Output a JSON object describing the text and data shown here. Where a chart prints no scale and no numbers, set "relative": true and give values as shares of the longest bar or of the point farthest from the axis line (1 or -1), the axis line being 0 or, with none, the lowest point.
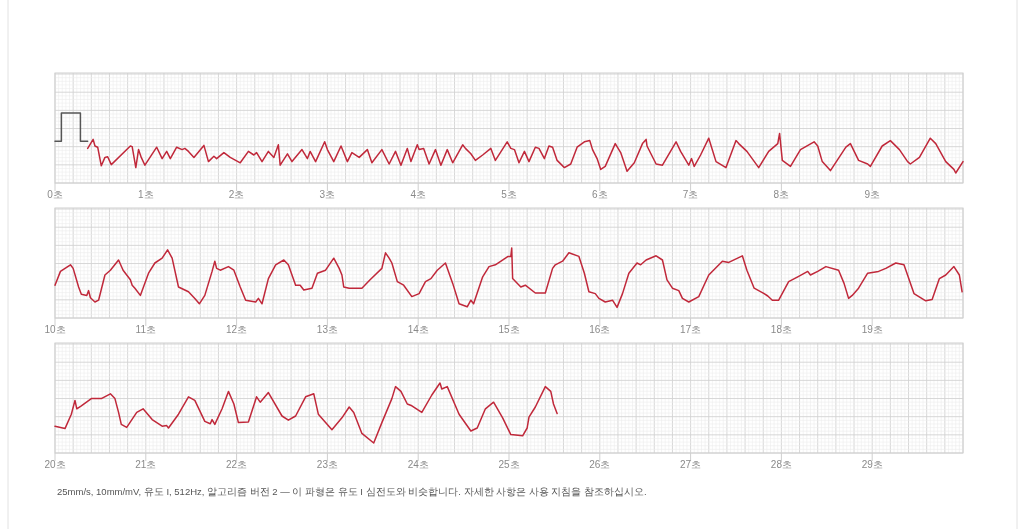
{
  "chart_data": [
    {
      "type": "line",
      "relative": true,
      "grid": true,
      "xlim": [
        0,
        10
      ],
      "xticks": [
        {
          "value": 0,
          "label": "0초"
        },
        {
          "value": 1,
          "label": "1초"
        },
        {
          "value": 2,
          "label": "2초"
        },
        {
          "value": 3,
          "label": "3초"
        },
        {
          "value": 4,
          "label": "4초"
        },
        {
          "value": 5,
          "label": "5초"
        },
        {
          "value": 6,
          "label": "6초"
        },
        {
          "value": 7,
          "label": "7초"
        },
        {
          "value": 8,
          "label": "8초"
        },
        {
          "value": 9,
          "label": "9초"
        }
      ],
      "series": [
        {
          "color": "#555555",
          "x": [
            0,
            0.07,
            0.07,
            0.28,
            0.28,
            0.36
          ],
          "values": [
            0.53,
            0.53,
            1.0,
            1.0,
            0.53,
            0.53
          ]
        },
        {
          "color": "#c0283a",
          "x": [
            0.36,
            0.42,
            0.44,
            0.47,
            0.51,
            0.55,
            0.58,
            0.62,
            0.83,
            0.85,
            0.89,
            0.92,
            0.95,
            0.99,
            1.12,
            1.18,
            1.23,
            1.27,
            1.34,
            1.4,
            1.43,
            1.47,
            1.53,
            1.64,
            1.69,
            1.75,
            1.78,
            1.86,
            1.93,
            2.04,
            2.13,
            2.19,
            2.22,
            2.28,
            2.35,
            2.41,
            2.46,
            2.48,
            2.56,
            2.61,
            2.72,
            2.78,
            2.81,
            2.87,
            2.97,
            3.0,
            3.07,
            3.15,
            3.22,
            3.27,
            3.35,
            3.44,
            3.49,
            3.6,
            3.68,
            3.75,
            3.81,
            3.88,
            3.92,
            3.99,
            4.01,
            4.06,
            4.12,
            4.19,
            4.25,
            4.32,
            4.38,
            4.49,
            4.52,
            4.58,
            4.63,
            4.71,
            4.8,
            4.85,
            4.98,
            5.02,
            5.06,
            5.11,
            5.17,
            5.22,
            5.29,
            5.33,
            5.39,
            5.44,
            5.48,
            5.53,
            5.61,
            5.68,
            5.75,
            5.83,
            5.89,
            5.92,
            5.97,
            6.01,
            6.06,
            6.17,
            6.23,
            6.3,
            6.38,
            6.47,
            6.51,
            6.52,
            6.62,
            6.69,
            6.84,
            6.89,
            6.98,
            7.01,
            7.04,
            7.11,
            7.2,
            7.28,
            7.39,
            7.5,
            7.53,
            7.62,
            7.75,
            7.86,
            7.96,
            7.98,
            8.01,
            8.1,
            8.21,
            8.36,
            8.4,
            8.45,
            8.54,
            8.71,
            8.76,
            8.85,
            8.95,
            8.98,
            9.11,
            9.2,
            9.3,
            9.39,
            9.42,
            9.52,
            9.64,
            9.7,
            9.81,
            9.9,
            9.92,
            10.0
          ],
          "values": [
            0.41,
            0.56,
            0.45,
            0.43,
            0.12,
            0.26,
            0.27,
            0.14,
            0.45,
            0.44,
            0.09,
            0.39,
            0.26,
            0.13,
            0.43,
            0.24,
            0.36,
            0.24,
            0.43,
            0.39,
            0.41,
            0.36,
            0.26,
            0.46,
            0.19,
            0.28,
            0.24,
            0.34,
            0.26,
            0.17,
            0.36,
            0.3,
            0.34,
            0.19,
            0.36,
            0.26,
            0.47,
            0.13,
            0.32,
            0.19,
            0.39,
            0.24,
            0.36,
            0.19,
            0.52,
            0.39,
            0.19,
            0.45,
            0.19,
            0.34,
            0.26,
            0.39,
            0.17,
            0.39,
            0.15,
            0.36,
            0.13,
            0.41,
            0.19,
            0.47,
            0.39,
            0.41,
            0.15,
            0.39,
            0.13,
            0.39,
            0.17,
            0.47,
            0.41,
            0.32,
            0.21,
            0.3,
            0.41,
            0.21,
            0.52,
            0.41,
            0.39,
            0.17,
            0.36,
            0.19,
            0.43,
            0.41,
            0.24,
            0.45,
            0.43,
            0.21,
            0.09,
            0.15,
            0.43,
            0.52,
            0.54,
            0.39,
            0.24,
            0.06,
            0.11,
            0.49,
            0.34,
            0.03,
            0.17,
            0.49,
            0.56,
            0.45,
            0.15,
            0.13,
            0.52,
            0.36,
            0.13,
            0.24,
            0.11,
            0.3,
            0.58,
            0.19,
            0.09,
            0.54,
            0.49,
            0.36,
            0.09,
            0.36,
            0.49,
            0.66,
            0.21,
            0.11,
            0.39,
            0.52,
            0.45,
            0.19,
            0.04,
            0.43,
            0.49,
            0.21,
            0.15,
            0.11,
            0.45,
            0.54,
            0.39,
            0.19,
            0.15,
            0.26,
            0.58,
            0.49,
            0.19,
            0.06,
            0.0,
            0.19
          ]
        }
      ]
    },
    {
      "type": "line",
      "relative": true,
      "grid": true,
      "xlim": [
        10,
        20
      ],
      "xticks": [
        {
          "value": 10,
          "label": "10초"
        },
        {
          "value": 11,
          "label": "11초"
        },
        {
          "value": 12,
          "label": "12초"
        },
        {
          "value": 13,
          "label": "13초"
        },
        {
          "value": 14,
          "label": "14초"
        },
        {
          "value": 15,
          "label": "15초"
        },
        {
          "value": 16,
          "label": "16초"
        },
        {
          "value": 17,
          "label": "17초"
        },
        {
          "value": 18,
          "label": "18초"
        },
        {
          "value": 19,
          "label": "19초"
        }
      ],
      "series": [
        {
          "color": "#c0283a",
          "x": [
            10.0,
            10.06,
            10.17,
            10.2,
            10.26,
            10.29,
            10.35,
            10.37,
            10.39,
            10.44,
            10.48,
            10.55,
            10.61,
            10.7,
            10.75,
            10.83,
            10.85,
            10.88,
            10.94,
            11.03,
            11.1,
            11.18,
            11.24,
            11.29,
            11.36,
            11.47,
            11.54,
            11.59,
            11.65,
            11.73,
            11.76,
            11.78,
            11.82,
            11.91,
            11.97,
            12.04,
            12.1,
            12.21,
            12.24,
            12.28,
            12.35,
            12.43,
            12.52,
            12.57,
            12.65,
            12.7,
            12.74,
            12.83,
            12.89,
            12.98,
            13.07,
            13.13,
            13.16,
            13.18,
            13.24,
            13.38,
            13.47,
            13.6,
            13.64,
            13.68,
            13.71,
            13.77,
            13.84,
            13.93,
            14.01,
            14.08,
            14.14,
            14.21,
            14.3,
            14.38,
            14.45,
            14.54,
            14.58,
            14.61,
            14.71,
            14.78,
            14.85,
            14.99,
            15.02,
            15.03,
            15.04,
            15.13,
            15.18,
            15.29,
            15.4,
            15.48,
            15.51,
            15.59,
            15.66,
            15.77,
            15.83,
            15.88,
            15.95,
            15.99,
            16.06,
            16.14,
            16.19,
            16.25,
            16.32,
            16.41,
            16.45,
            16.51,
            16.62,
            16.69,
            16.74,
            16.8,
            16.87,
            16.91,
            16.98,
            17.09,
            17.2,
            17.35,
            17.42,
            17.57,
            17.62,
            17.7,
            17.81,
            17.85,
            17.9,
            17.97,
            18.08,
            18.18,
            18.29,
            18.32,
            18.4,
            18.49,
            18.63,
            18.69,
            18.74,
            18.78,
            18.85,
            18.95,
            19.07,
            19.15,
            19.26,
            19.35,
            19.46,
            19.59,
            19.66,
            19.74,
            19.81,
            19.9,
            19.96,
            19.99
          ],
          "values": [
            0.38,
            0.61,
            0.72,
            0.66,
            0.35,
            0.23,
            0.21,
            0.29,
            0.17,
            0.1,
            0.13,
            0.55,
            0.63,
            0.8,
            0.63,
            0.47,
            0.38,
            0.33,
            0.21,
            0.58,
            0.75,
            0.83,
            0.97,
            0.83,
            0.35,
            0.27,
            0.16,
            0.07,
            0.21,
            0.61,
            0.78,
            0.66,
            0.63,
            0.69,
            0.63,
            0.35,
            0.13,
            0.1,
            0.16,
            0.07,
            0.49,
            0.72,
            0.8,
            0.72,
            0.38,
            0.38,
            0.3,
            0.33,
            0.58,
            0.63,
            0.83,
            0.66,
            0.55,
            0.35,
            0.33,
            0.33,
            0.47,
            0.66,
            0.92,
            0.83,
            0.75,
            0.44,
            0.38,
            0.19,
            0.24,
            0.44,
            0.49,
            0.63,
            0.75,
            0.41,
            0.07,
            0.02,
            0.13,
            0.07,
            0.52,
            0.69,
            0.72,
            0.86,
            0.86,
            1.0,
            0.49,
            0.35,
            0.38,
            0.25,
            0.25,
            0.66,
            0.72,
            0.78,
            0.92,
            0.86,
            0.58,
            0.27,
            0.24,
            0.16,
            0.1,
            0.13,
            0.01,
            0.24,
            0.58,
            0.75,
            0.72,
            0.8,
            0.87,
            0.8,
            0.47,
            0.33,
            0.29,
            0.16,
            0.1,
            0.19,
            0.55,
            0.78,
            0.76,
            0.87,
            0.63,
            0.33,
            0.24,
            0.2,
            0.13,
            0.13,
            0.44,
            0.52,
            0.61,
            0.55,
            0.61,
            0.69,
            0.63,
            0.41,
            0.16,
            0.21,
            0.33,
            0.58,
            0.61,
            0.66,
            0.75,
            0.72,
            0.24,
            0.12,
            0.14,
            0.49,
            0.55,
            0.69,
            0.55,
            0.27
          ]
        }
      ]
    },
    {
      "type": "line",
      "relative": true,
      "grid": true,
      "xlim": [
        20,
        30
      ],
      "xticks": [
        {
          "value": 20,
          "label": "20초"
        },
        {
          "value": 21,
          "label": "21초"
        },
        {
          "value": 22,
          "label": "22초"
        },
        {
          "value": 23,
          "label": "23초"
        },
        {
          "value": 24,
          "label": "24초"
        },
        {
          "value": 25,
          "label": "25초"
        },
        {
          "value": 26,
          "label": "26초"
        },
        {
          "value": 27,
          "label": "27초"
        },
        {
          "value": 28,
          "label": "28초"
        },
        {
          "value": 29,
          "label": "29초"
        }
      ],
      "annotations": [
        "25mm/s, 10mm/mV, 유도 I, 512Hz, 알고리즘 버전 2 — 이 파형은 유도 I 심전도와 비슷합니다. 자세한 사항은 사용 지침을 참조하십시오."
      ],
      "series": [
        {
          "color": "#c0283a",
          "x": [
            20.0,
            20.11,
            20.18,
            20.22,
            20.24,
            20.29,
            20.4,
            20.51,
            20.61,
            20.66,
            20.7,
            20.73,
            20.79,
            20.9,
            20.97,
            21.07,
            21.18,
            21.23,
            21.25,
            21.36,
            21.47,
            21.54,
            21.65,
            21.71,
            21.73,
            21.76,
            21.84,
            21.91,
            21.97,
            22.02,
            22.13,
            22.22,
            22.26,
            22.35,
            22.5,
            22.57,
            22.65,
            22.76,
            22.85,
            22.9,
            23.05,
            23.16,
            23.24,
            23.29,
            23.38,
            23.51,
            23.6,
            23.71,
            23.75,
            23.81,
            23.88,
            23.93,
            24.04,
            24.15,
            24.24,
            24.26,
            24.32,
            24.45,
            24.58,
            24.65,
            24.74,
            24.83,
            24.93,
            25.02,
            25.15,
            25.2,
            25.22,
            25.29,
            25.4,
            25.46,
            25.49,
            25.53
          ],
          "values": [
            0.28,
            0.24,
            0.48,
            0.71,
            0.57,
            0.62,
            0.74,
            0.74,
            0.82,
            0.74,
            0.51,
            0.31,
            0.26,
            0.51,
            0.57,
            0.39,
            0.28,
            0.29,
            0.25,
            0.48,
            0.77,
            0.71,
            0.36,
            0.32,
            0.39,
            0.31,
            0.57,
            0.86,
            0.65,
            0.34,
            0.35,
            0.77,
            0.68,
            0.84,
            0.45,
            0.38,
            0.45,
            0.77,
            0.82,
            0.48,
            0.22,
            0.42,
            0.6,
            0.51,
            0.16,
            0.0,
            0.34,
            0.74,
            0.94,
            0.86,
            0.65,
            0.62,
            0.51,
            0.8,
            1.0,
            0.9,
            0.94,
            0.48,
            0.2,
            0.25,
            0.57,
            0.68,
            0.42,
            0.14,
            0.12,
            0.25,
            0.43,
            0.6,
            0.94,
            0.86,
            0.65,
            0.49
          ]
        }
      ]
    }
  ]
}
